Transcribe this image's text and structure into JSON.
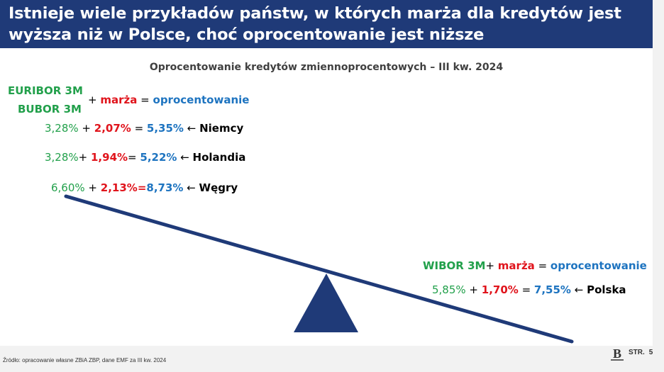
{
  "header": {
    "line1": "Istnieje wiele przykładów państw, w których marża dla kredytów jest",
    "line2": "wyższa niż w Polsce, choć oprocentowanie jest niższe"
  },
  "chart_title": "Oprocentowanie kredytów zmiennoprocentowych – III kw. 2024",
  "left_formula": {
    "base1": "EURIBOR 3M",
    "base2": "BUBOR 3M",
    "plus": "+",
    "margin": "marża",
    "equals": "=",
    "result": "oprocentowanie"
  },
  "rows": [
    {
      "base": "3,28%",
      "op1": " + ",
      "margin": "2,07%",
      "op2": " = ",
      "rate": "5,35%",
      "arrow": " ← ",
      "country": "Niemcy"
    },
    {
      "base": "3,28%",
      "op1": "+ ",
      "margin": "1,94%",
      "op2": "= ",
      "rate": "5,22%",
      "arrow": " ← ",
      "country": "Holandia"
    },
    {
      "base": "6,60%",
      "op1": " + ",
      "margin": "2,13%",
      "op2": "=",
      "rate": "8,73%",
      "arrow": " ← ",
      "country": "Węgry"
    }
  ],
  "right_formula": {
    "base": "WIBOR 3M",
    "plus": "+ ",
    "margin": "marża",
    "equals": " = ",
    "result": "oprocentowanie"
  },
  "poland": {
    "base": "5,85%",
    "op1": " + ",
    "margin": "1,70%",
    "op2": " = ",
    "rate": "7,55%",
    "arrow": " ← ",
    "country": "Polska"
  },
  "footer": {
    "source": "Źródło: opracowanie własne ZBiA ZBP, dane EMF za III kw. 2024",
    "page_label": "STR.",
    "page_number": "5",
    "logo_letter": "B"
  },
  "colors": {
    "header_bg": "#1f3a78",
    "green": "#22a04b",
    "red": "#e0141c",
    "blue": "#1e74c0",
    "scale": "#1f3a78"
  }
}
